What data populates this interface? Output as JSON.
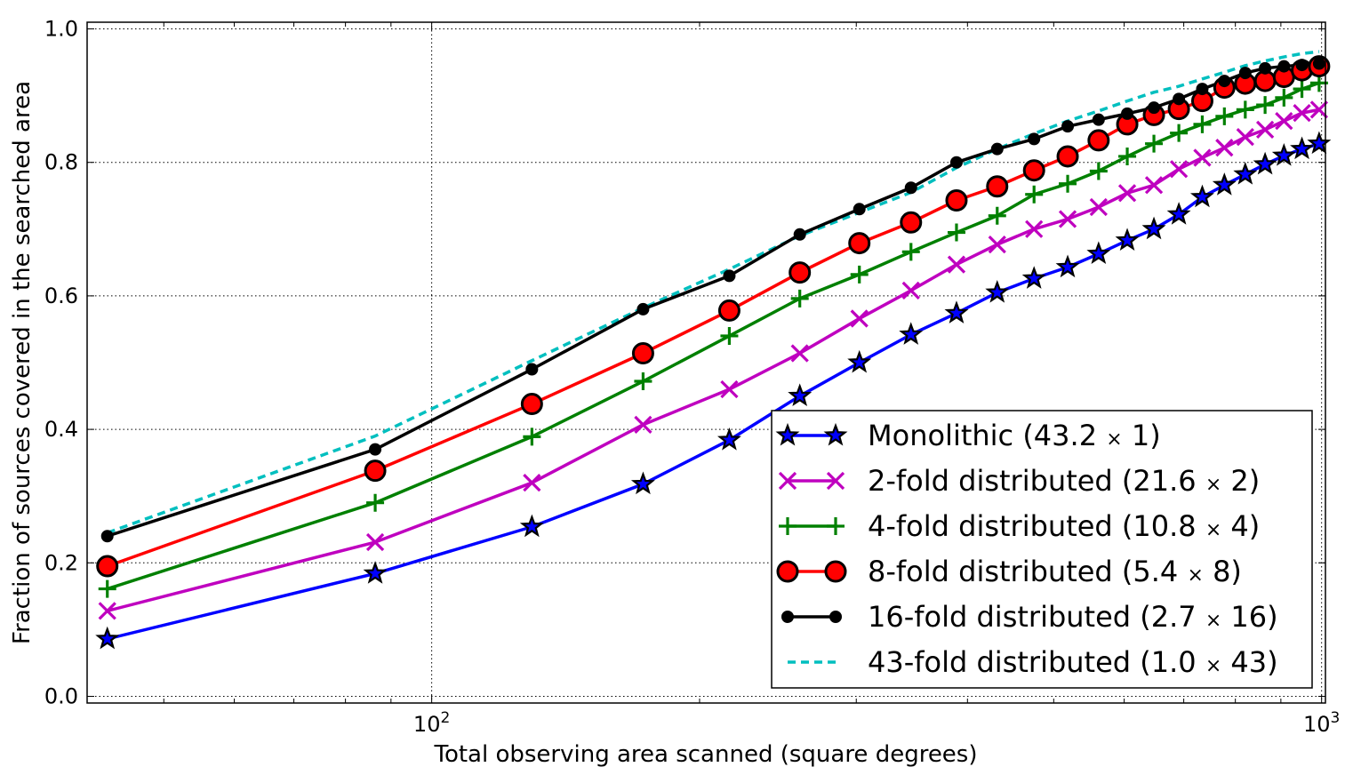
{
  "chart_data": {
    "type": "line",
    "title": "",
    "xlabel": "Total observing area scanned (square degrees)",
    "ylabel": "Fraction of sources covered in the searched area",
    "xscale": "log",
    "xlim": [
      41,
      1010
    ],
    "ylim": [
      -0.01,
      1.01
    ],
    "x_ticks": [
      {
        "value": 100,
        "base": "10",
        "exp": "2"
      },
      {
        "value": 1000,
        "base": "10",
        "exp": "3"
      }
    ],
    "y_ticks": [
      {
        "value": 0.0,
        "label": "0.0"
      },
      {
        "value": 0.2,
        "label": "0.2"
      },
      {
        "value": 0.4,
        "label": "0.4"
      },
      {
        "value": 0.6,
        "label": "0.6"
      },
      {
        "value": 0.8,
        "label": "0.8"
      },
      {
        "value": 1.0,
        "label": "1.0"
      }
    ],
    "grid": true,
    "legend_position": "lower-right",
    "series": [
      {
        "name": "Monolithic (43.2 × 1)",
        "name_parts": [
          "Monolithic (43.2 ",
          "×",
          " 1)"
        ],
        "color": "#0000ff",
        "marker": "star",
        "linestyle": "solid",
        "x": [
          43.2,
          86.4,
          129.6,
          172.8,
          216,
          259.2,
          302.4,
          345.6,
          388.8,
          432,
          475.2,
          518.4,
          561.6,
          604.8,
          648,
          691.2,
          734.4,
          777.6,
          820.8,
          864,
          907.2,
          950.4,
          993.6
        ],
        "y": [
          0.086,
          0.184,
          0.254,
          0.318,
          0.384,
          0.45,
          0.5,
          0.542,
          0.574,
          0.605,
          0.626,
          0.643,
          0.663,
          0.683,
          0.7,
          0.722,
          0.748,
          0.766,
          0.782,
          0.797,
          0.81,
          0.82,
          0.828
        ]
      },
      {
        "name": "2-fold distributed (21.6 × 2)",
        "name_parts": [
          "2-fold distributed (21.6 ",
          "×",
          " 2)"
        ],
        "color": "#bf00bf",
        "marker": "x",
        "linestyle": "solid",
        "x": [
          43.2,
          86.4,
          129.6,
          172.8,
          216,
          259.2,
          302.4,
          345.6,
          388.8,
          432,
          475.2,
          518.4,
          561.6,
          604.8,
          648,
          691.2,
          734.4,
          777.6,
          820.8,
          864,
          907.2,
          950.4,
          993.6
        ],
        "y": [
          0.128,
          0.231,
          0.32,
          0.407,
          0.46,
          0.514,
          0.566,
          0.608,
          0.647,
          0.677,
          0.7,
          0.715,
          0.733,
          0.754,
          0.766,
          0.79,
          0.807,
          0.822,
          0.838,
          0.849,
          0.862,
          0.874,
          0.879
        ]
      },
      {
        "name": "4-fold distributed (10.8 × 4)",
        "name_parts": [
          "4-fold distributed (10.8 ",
          "×",
          " 4)"
        ],
        "color": "#008000",
        "marker": "plus",
        "linestyle": "solid",
        "x": [
          43.2,
          86.4,
          129.6,
          172.8,
          216,
          259.2,
          302.4,
          345.6,
          388.8,
          432,
          475.2,
          518.4,
          561.6,
          604.8,
          648,
          691.2,
          734.4,
          777.6,
          820.8,
          864,
          907.2,
          950.4,
          993.6
        ],
        "y": [
          0.161,
          0.29,
          0.389,
          0.472,
          0.54,
          0.596,
          0.632,
          0.666,
          0.695,
          0.72,
          0.752,
          0.768,
          0.787,
          0.809,
          0.828,
          0.844,
          0.857,
          0.869,
          0.879,
          0.886,
          0.897,
          0.91,
          0.919
        ]
      },
      {
        "name": "8-fold distributed (5.4 × 8)",
        "name_parts": [
          "8-fold distributed (5.4 ",
          "×",
          " 8)"
        ],
        "color": "#ff0000",
        "marker": "circle-large",
        "linestyle": "solid",
        "x": [
          43.2,
          86.4,
          129.6,
          172.8,
          216,
          259.2,
          302.4,
          345.6,
          388.8,
          432,
          475.2,
          518.4,
          561.6,
          604.8,
          648,
          691.2,
          734.4,
          777.6,
          820.8,
          864,
          907.2,
          950.4,
          993.6
        ],
        "y": [
          0.195,
          0.338,
          0.438,
          0.514,
          0.578,
          0.635,
          0.679,
          0.71,
          0.743,
          0.764,
          0.788,
          0.809,
          0.833,
          0.857,
          0.871,
          0.88,
          0.892,
          0.912,
          0.918,
          0.922,
          0.928,
          0.938,
          0.944
        ]
      },
      {
        "name": "16-fold distributed (2.7 × 16)",
        "name_parts": [
          "16-fold distributed (2.7 ",
          "×",
          " 16)"
        ],
        "color": "#000000",
        "marker": "dot",
        "linestyle": "solid",
        "x": [
          43.2,
          86.4,
          129.6,
          172.8,
          216,
          259.2,
          302.4,
          345.6,
          388.8,
          432,
          475.2,
          518.4,
          561.6,
          604.8,
          648,
          691.2,
          734.4,
          777.6,
          820.8,
          864,
          907.2,
          950.4,
          993.6
        ],
        "y": [
          0.24,
          0.37,
          0.49,
          0.58,
          0.63,
          0.692,
          0.73,
          0.762,
          0.8,
          0.82,
          0.835,
          0.854,
          0.864,
          0.873,
          0.882,
          0.895,
          0.91,
          0.922,
          0.934,
          0.941,
          0.944,
          0.946,
          0.948
        ]
      },
      {
        "name": "43-fold distributed (1.0 × 43)",
        "name_parts": [
          "43-fold distributed (1.0 ",
          "×",
          " 43)"
        ],
        "color": "#00bfbf",
        "marker": "none",
        "linestyle": "dashed",
        "x": [
          43.2,
          86.4,
          129.6,
          172.8,
          216,
          259.2,
          302.4,
          345.6,
          388.8,
          432,
          475.2,
          518.4,
          561.6,
          604.8,
          648,
          691.2,
          734.4,
          777.6,
          820.8,
          864,
          907.2,
          950.4,
          993.6
        ],
        "y": [
          0.245,
          0.39,
          0.503,
          0.582,
          0.64,
          0.69,
          0.725,
          0.755,
          0.792,
          0.82,
          0.843,
          0.862,
          0.877,
          0.892,
          0.905,
          0.914,
          0.925,
          0.935,
          0.945,
          0.952,
          0.958,
          0.963,
          0.966
        ]
      }
    ]
  }
}
